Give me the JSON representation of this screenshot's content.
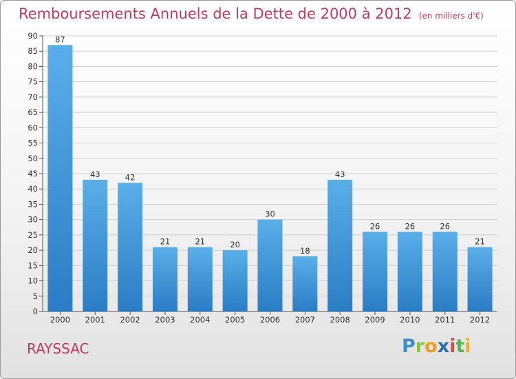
{
  "header": {
    "title": "Remboursements Annuels de la Dette de 2000 à 2012",
    "unit": "(en milliers d'€)"
  },
  "footer": {
    "city": "RAYSSAC",
    "logo_text": "Proxiti"
  },
  "colors": {
    "title": "#c13a5c",
    "bar_top": "#5aaee8",
    "bar_bottom": "#2a7dc4"
  },
  "chart_data": {
    "type": "bar",
    "title": "Remboursements Annuels de la Dette de 2000 à 2012",
    "subtitle": "(en milliers d'€)",
    "categories": [
      "2000",
      "2001",
      "2002",
      "2003",
      "2004",
      "2005",
      "2006",
      "2007",
      "2008",
      "2009",
      "2010",
      "2011",
      "2012"
    ],
    "values": [
      87,
      43,
      42,
      21,
      21,
      20,
      30,
      18,
      43,
      26,
      26,
      26,
      21
    ],
    "ylim": [
      0,
      90
    ],
    "yticks": [
      0,
      5,
      10,
      15,
      20,
      25,
      30,
      35,
      40,
      45,
      50,
      55,
      60,
      65,
      70,
      75,
      80,
      85,
      90
    ],
    "grid": true,
    "legend": "none"
  }
}
